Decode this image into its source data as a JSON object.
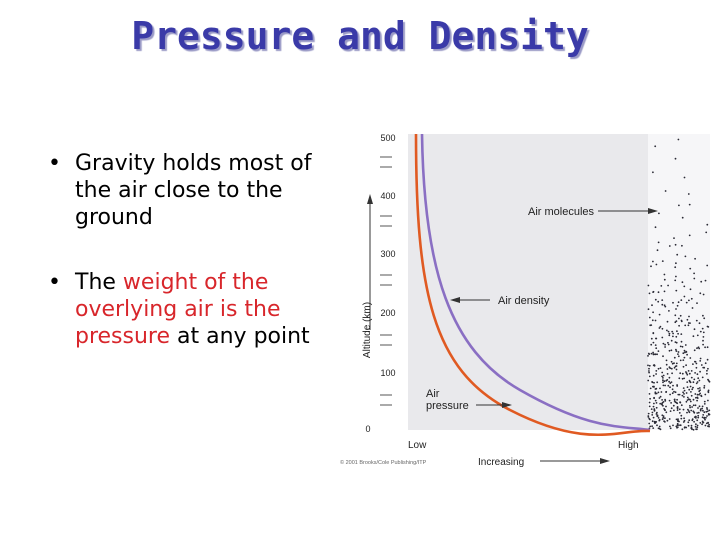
{
  "slide": {
    "title": "Pressure and Density",
    "bullets": [
      {
        "dot": "•",
        "text": "Gravity holds most of the air close to the ground"
      },
      {
        "dot": "•",
        "pre": "The ",
        "red1": "weight of the overlying air is the pressure",
        "post": " at any point"
      }
    ]
  },
  "figure": {
    "y_axis_label": "Altitude (km)",
    "y_ticks": [
      "500",
      "400",
      "300",
      "200",
      "100",
      "0"
    ],
    "x_low": "Low",
    "x_high": "High",
    "x_increasing": "Increasing",
    "copyright": "© 2001 Brooks/Cole Publishing/ITP",
    "labels": {
      "air_molecules": "Air molecules",
      "air_density": "Air density",
      "air_pressure_line1": "Air",
      "air_pressure_line2": "pressure"
    },
    "colors": {
      "panel": "#e9e9ec",
      "density_curve": "#8a6fc3",
      "pressure_curve": "#e05a22",
      "title": "#3a3aa8",
      "highlight": "#d8262b"
    }
  }
}
